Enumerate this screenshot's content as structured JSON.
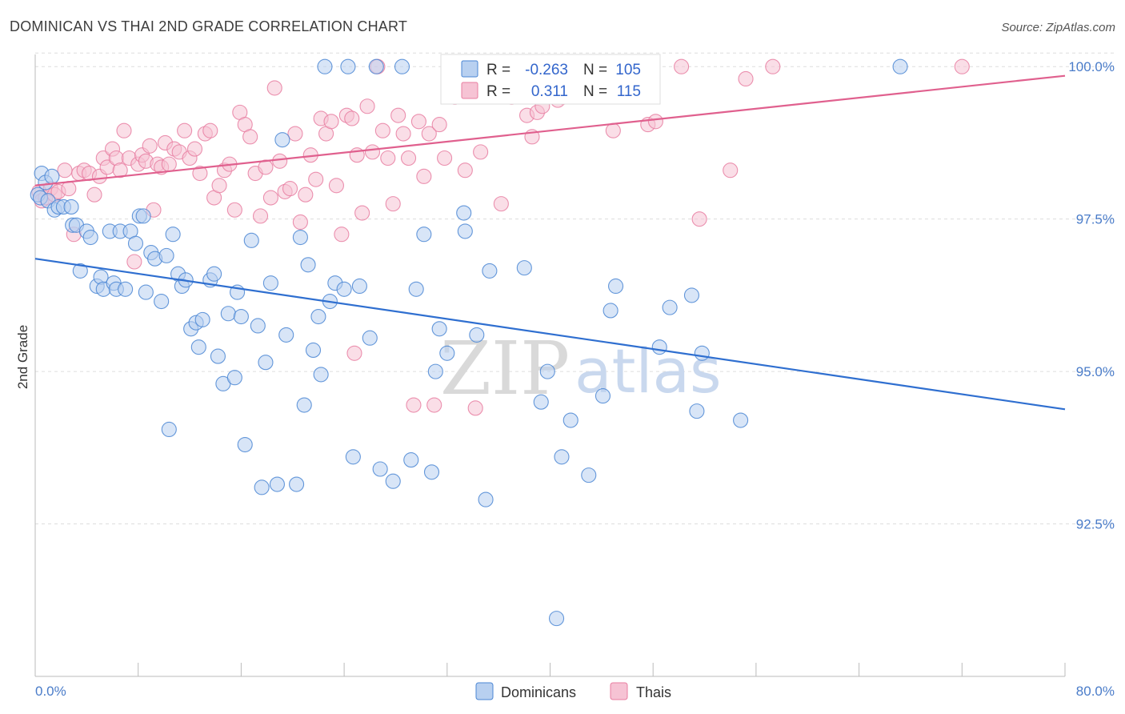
{
  "title": "DOMINICAN VS THAI 2ND GRADE CORRELATION CHART",
  "source": "Source: ZipAtlas.com",
  "watermark": {
    "zip": "ZIP",
    "atlas": "atlas"
  },
  "colors": {
    "blue": "#4a86d4",
    "blue_fill": "#b8d0f0",
    "blue_line": "#2f6fd0",
    "pink": "#e87ea1",
    "pink_fill": "#f6c3d4",
    "pink_line": "#e0608e",
    "grid": "#dddddd",
    "axis_text": "#4a7cc9"
  },
  "stats": {
    "r_label": "R =",
    "n_label": "N =",
    "rows": [
      {
        "name": "Dominicans",
        "r": "-0.263",
        "n": "105"
      },
      {
        "name": "Thais",
        "r": "0.311",
        "n": "115"
      }
    ]
  },
  "chart_data": {
    "type": "scatter",
    "title": "DOMINICAN VS THAI 2ND GRADE CORRELATION CHART",
    "xlabel": "",
    "ylabel": "2nd Grade",
    "xlim": [
      0,
      80
    ],
    "ylim": [
      90.0,
      100.2
    ],
    "x_ticks_labels": [
      "0.0%",
      "80.0%"
    ],
    "y_ticks": [
      92.5,
      95.0,
      97.5,
      100.0
    ],
    "y_ticks_labels": [
      "92.5%",
      "95.0%",
      "97.5%",
      "100.0%"
    ],
    "grid": true,
    "legend_position": "bottom-center",
    "series": [
      {
        "name": "Dominicans",
        "trend": [
          [
            0,
            96.85
          ],
          [
            80,
            94.38
          ]
        ],
        "points": [
          [
            0.2,
            97.9
          ],
          [
            0.4,
            97.85
          ],
          [
            0.5,
            98.25
          ],
          [
            0.8,
            98.1
          ],
          [
            1.0,
            97.8
          ],
          [
            1.3,
            98.2
          ],
          [
            1.5,
            97.65
          ],
          [
            1.8,
            97.7
          ],
          [
            2.2,
            97.7
          ],
          [
            2.8,
            97.7
          ],
          [
            2.9,
            97.4
          ],
          [
            3.2,
            97.4
          ],
          [
            3.5,
            96.65
          ],
          [
            4.0,
            97.3
          ],
          [
            4.3,
            97.2
          ],
          [
            4.8,
            96.4
          ],
          [
            5.1,
            96.55
          ],
          [
            5.3,
            96.35
          ],
          [
            5.8,
            97.3
          ],
          [
            6.1,
            96.45
          ],
          [
            6.3,
            96.35
          ],
          [
            6.6,
            97.3
          ],
          [
            7.0,
            96.35
          ],
          [
            7.4,
            97.3
          ],
          [
            7.8,
            97.1
          ],
          [
            8.1,
            97.55
          ],
          [
            8.4,
            97.55
          ],
          [
            8.6,
            96.3
          ],
          [
            9.0,
            96.95
          ],
          [
            9.3,
            96.85
          ],
          [
            9.8,
            96.15
          ],
          [
            10.2,
            96.9
          ],
          [
            10.4,
            94.05
          ],
          [
            10.7,
            97.25
          ],
          [
            11.1,
            96.6
          ],
          [
            11.4,
            96.4
          ],
          [
            11.7,
            96.5
          ],
          [
            12.1,
            95.7
          ],
          [
            12.5,
            95.8
          ],
          [
            12.7,
            95.4
          ],
          [
            13.0,
            95.85
          ],
          [
            13.6,
            96.5
          ],
          [
            13.9,
            96.6
          ],
          [
            14.2,
            95.25
          ],
          [
            14.6,
            94.8
          ],
          [
            15.0,
            95.95
          ],
          [
            15.5,
            94.9
          ],
          [
            15.7,
            96.3
          ],
          [
            16.0,
            95.9
          ],
          [
            16.3,
            93.8
          ],
          [
            16.8,
            97.15
          ],
          [
            17.3,
            95.75
          ],
          [
            17.6,
            93.1
          ],
          [
            17.9,
            95.15
          ],
          [
            18.3,
            96.45
          ],
          [
            18.8,
            93.15
          ],
          [
            19.2,
            98.8
          ],
          [
            19.5,
            95.6
          ],
          [
            20.3,
            93.15
          ],
          [
            20.6,
            97.2
          ],
          [
            20.9,
            94.45
          ],
          [
            21.2,
            96.75
          ],
          [
            21.6,
            95.35
          ],
          [
            22.0,
            95.9
          ],
          [
            22.2,
            94.95
          ],
          [
            22.5,
            100.0
          ],
          [
            22.9,
            96.15
          ],
          [
            23.3,
            96.45
          ],
          [
            24.0,
            96.35
          ],
          [
            24.3,
            100.0
          ],
          [
            24.7,
            93.6
          ],
          [
            25.2,
            96.4
          ],
          [
            26.0,
            95.55
          ],
          [
            26.5,
            100.0
          ],
          [
            26.8,
            93.4
          ],
          [
            27.8,
            93.2
          ],
          [
            28.5,
            100.0
          ],
          [
            29.2,
            93.55
          ],
          [
            29.6,
            96.35
          ],
          [
            30.2,
            97.25
          ],
          [
            30.8,
            93.35
          ],
          [
            31.1,
            95.0
          ],
          [
            31.4,
            95.7
          ],
          [
            32.0,
            95.3
          ],
          [
            33.3,
            97.6
          ],
          [
            33.4,
            97.3
          ],
          [
            34.3,
            95.6
          ],
          [
            35.0,
            92.9
          ],
          [
            35.3,
            96.65
          ],
          [
            38.0,
            96.7
          ],
          [
            39.3,
            94.5
          ],
          [
            39.8,
            95.0
          ],
          [
            40.5,
            90.95
          ],
          [
            40.9,
            93.6
          ],
          [
            41.6,
            94.2
          ],
          [
            43.0,
            93.3
          ],
          [
            44.1,
            94.6
          ],
          [
            44.7,
            96.0
          ],
          [
            45.1,
            96.4
          ],
          [
            48.5,
            95.4
          ],
          [
            49.3,
            96.05
          ],
          [
            51.0,
            96.25
          ],
          [
            51.4,
            94.35
          ],
          [
            51.8,
            95.3
          ],
          [
            54.8,
            94.2
          ],
          [
            67.2,
            100.0
          ]
        ]
      },
      {
        "name": "Thais",
        "trend": [
          [
            0,
            98.05
          ],
          [
            80,
            99.85
          ]
        ],
        "points": [
          [
            0.3,
            97.95
          ],
          [
            0.5,
            97.8
          ],
          [
            0.8,
            97.85
          ],
          [
            1.2,
            98.0
          ],
          [
            1.5,
            97.9
          ],
          [
            1.8,
            97.95
          ],
          [
            2.3,
            98.3
          ],
          [
            2.6,
            98.0
          ],
          [
            3.0,
            97.25
          ],
          [
            3.4,
            98.25
          ],
          [
            3.8,
            98.3
          ],
          [
            4.2,
            98.25
          ],
          [
            4.6,
            97.9
          ],
          [
            5.0,
            98.2
          ],
          [
            5.3,
            98.5
          ],
          [
            5.6,
            98.35
          ],
          [
            6.0,
            98.65
          ],
          [
            6.3,
            98.5
          ],
          [
            6.6,
            98.3
          ],
          [
            6.9,
            98.95
          ],
          [
            7.3,
            98.5
          ],
          [
            7.7,
            96.8
          ],
          [
            8.0,
            98.4
          ],
          [
            8.3,
            98.55
          ],
          [
            8.6,
            98.45
          ],
          [
            8.9,
            98.7
          ],
          [
            9.2,
            97.65
          ],
          [
            9.5,
            98.4
          ],
          [
            9.8,
            98.35
          ],
          [
            10.1,
            98.75
          ],
          [
            10.4,
            98.4
          ],
          [
            10.8,
            98.65
          ],
          [
            11.2,
            98.6
          ],
          [
            11.6,
            98.95
          ],
          [
            12.0,
            98.5
          ],
          [
            12.4,
            98.65
          ],
          [
            12.8,
            98.25
          ],
          [
            13.2,
            98.9
          ],
          [
            13.6,
            98.95
          ],
          [
            13.9,
            97.85
          ],
          [
            14.3,
            98.05
          ],
          [
            14.7,
            98.3
          ],
          [
            15.1,
            98.4
          ],
          [
            15.5,
            97.65
          ],
          [
            15.9,
            99.25
          ],
          [
            16.3,
            99.05
          ],
          [
            16.7,
            98.85
          ],
          [
            17.1,
            98.25
          ],
          [
            17.5,
            97.55
          ],
          [
            17.9,
            98.35
          ],
          [
            18.3,
            97.85
          ],
          [
            18.6,
            99.65
          ],
          [
            19.0,
            98.45
          ],
          [
            19.4,
            97.95
          ],
          [
            19.8,
            98.0
          ],
          [
            20.2,
            98.9
          ],
          [
            20.6,
            97.45
          ],
          [
            21.0,
            97.9
          ],
          [
            21.4,
            98.55
          ],
          [
            21.8,
            98.15
          ],
          [
            22.2,
            99.15
          ],
          [
            22.6,
            98.9
          ],
          [
            23.0,
            99.1
          ],
          [
            23.4,
            98.05
          ],
          [
            23.8,
            97.25
          ],
          [
            24.2,
            99.2
          ],
          [
            24.6,
            99.15
          ],
          [
            24.8,
            95.3
          ],
          [
            25.0,
            98.55
          ],
          [
            25.4,
            97.6
          ],
          [
            25.8,
            99.35
          ],
          [
            26.2,
            98.6
          ],
          [
            26.6,
            100.0
          ],
          [
            27.0,
            98.95
          ],
          [
            27.4,
            98.5
          ],
          [
            27.8,
            97.75
          ],
          [
            28.2,
            99.2
          ],
          [
            28.6,
            98.9
          ],
          [
            29.0,
            98.5
          ],
          [
            29.4,
            94.45
          ],
          [
            29.8,
            99.1
          ],
          [
            30.2,
            98.2
          ],
          [
            30.6,
            98.9
          ],
          [
            31.0,
            94.45
          ],
          [
            31.4,
            99.05
          ],
          [
            31.8,
            98.5
          ],
          [
            32.2,
            100.0
          ],
          [
            32.6,
            99.5
          ],
          [
            33.0,
            99.65
          ],
          [
            33.4,
            98.3
          ],
          [
            33.8,
            99.95
          ],
          [
            34.2,
            94.4
          ],
          [
            34.6,
            98.6
          ],
          [
            35.0,
            99.75
          ],
          [
            35.4,
            99.55
          ],
          [
            35.8,
            99.95
          ],
          [
            36.2,
            97.75
          ],
          [
            36.6,
            99.6
          ],
          [
            37.0,
            99.5
          ],
          [
            37.4,
            99.65
          ],
          [
            37.8,
            99.8
          ],
          [
            38.2,
            99.2
          ],
          [
            38.6,
            98.85
          ],
          [
            39.0,
            99.25
          ],
          [
            39.4,
            99.35
          ],
          [
            39.8,
            99.6
          ],
          [
            40.2,
            99.75
          ],
          [
            40.6,
            99.45
          ],
          [
            41.0,
            99.5
          ],
          [
            41.4,
            99.55
          ],
          [
            44.9,
            98.95
          ],
          [
            47.6,
            99.05
          ],
          [
            48.2,
            99.1
          ],
          [
            50.2,
            100.0
          ],
          [
            51.6,
            97.5
          ],
          [
            54.0,
            98.3
          ],
          [
            55.2,
            99.8
          ],
          [
            57.3,
            100.0
          ],
          [
            72.0,
            100.0
          ]
        ]
      }
    ]
  }
}
